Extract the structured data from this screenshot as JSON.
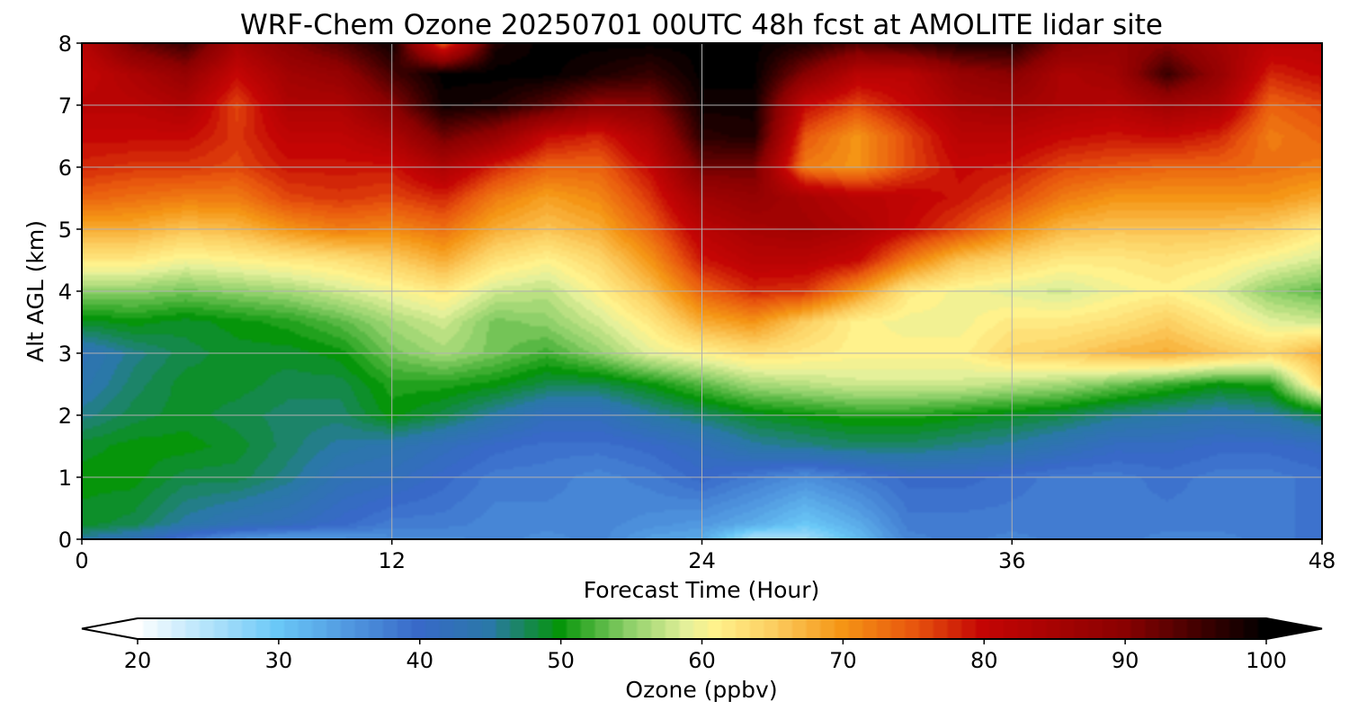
{
  "chart_data": {
    "type": "heatmap",
    "title": "WRF-Chem Ozone  20250701 00UTC 48h fcst at AMOLITE lidar site",
    "xlabel": "Forecast Time (Hour)",
    "ylabel": "Alt AGL (km)",
    "xlim": [
      0,
      48
    ],
    "ylim": [
      0,
      8
    ],
    "xticks": [
      "0",
      "12",
      "24",
      "36",
      "48"
    ],
    "yticks": [
      "0",
      "1",
      "2",
      "3",
      "4",
      "5",
      "6",
      "7",
      "8"
    ],
    "grid": true,
    "x_hours": [
      0,
      2,
      4,
      6,
      8,
      10,
      12,
      14,
      16,
      18,
      20,
      22,
      24,
      26,
      28,
      30,
      32,
      34,
      36,
      38,
      40,
      42,
      44,
      46,
      48
    ],
    "y_km": [
      0,
      0.25,
      1,
      1.5,
      2,
      2.5,
      3,
      3.5,
      4,
      4.5,
      5,
      5.5,
      6,
      6.5,
      7,
      7.5,
      8
    ],
    "z_ppbv": [
      [
        45,
        43,
        38,
        35,
        34,
        35,
        36,
        36,
        37,
        36,
        37,
        34,
        33,
        25,
        26,
        31,
        37,
        38,
        37,
        38,
        38,
        37,
        37,
        38,
        39
      ],
      [
        49,
        48,
        45,
        43,
        42,
        40,
        38,
        38,
        37,
        37,
        37,
        36,
        35,
        33,
        30,
        33,
        38,
        38,
        38,
        38,
        38,
        38,
        38,
        38,
        39
      ],
      [
        50,
        50,
        48,
        48,
        46,
        43,
        42,
        40,
        38,
        38,
        37,
        38,
        40,
        38,
        36,
        38,
        40,
        40,
        39,
        38,
        38,
        39,
        38,
        38,
        39
      ],
      [
        49,
        50,
        50,
        49,
        47,
        45,
        44,
        42,
        40,
        39,
        39,
        40,
        42,
        45,
        46,
        47,
        47,
        46,
        45,
        43,
        41,
        41,
        40,
        40,
        41
      ],
      [
        46,
        48,
        49,
        48,
        47,
        47,
        50,
        48,
        45,
        42,
        42,
        45,
        47,
        49,
        50,
        51,
        51,
        50,
        49,
        48,
        46,
        45,
        44,
        45,
        48
      ],
      [
        44,
        47,
        49,
        49,
        48,
        48,
        51,
        51,
        50,
        48,
        48,
        50,
        53,
        56,
        57,
        58,
        58,
        58,
        57,
        56,
        54,
        52,
        50,
        51,
        64
      ],
      [
        43,
        46,
        48,
        49,
        49,
        50,
        54,
        56,
        54,
        52,
        55,
        59,
        61,
        63,
        62,
        61,
        61,
        61,
        64,
        65,
        67,
        68,
        66,
        64,
        68
      ],
      [
        49,
        50,
        49,
        50,
        51,
        53,
        56,
        58,
        54,
        55,
        58,
        62,
        68,
        70,
        65,
        61,
        60,
        60,
        62,
        62,
        63,
        65,
        62,
        59,
        58
      ],
      [
        55,
        55,
        54,
        55,
        56,
        58,
        60,
        62,
        58,
        57,
        61,
        66,
        74,
        78,
        77,
        70,
        62,
        60,
        59,
        58,
        60,
        61,
        59,
        55,
        53
      ],
      [
        62,
        62,
        60,
        61,
        62,
        63,
        65,
        68,
        63,
        61,
        64,
        70,
        79,
        82,
        82,
        80,
        72,
        66,
        64,
        62,
        62,
        63,
        62,
        60,
        58
      ],
      [
        68,
        68,
        66,
        67,
        70,
        72,
        71,
        73,
        68,
        66,
        68,
        74,
        82,
        85,
        86,
        84,
        80,
        76,
        71,
        67,
        66,
        66,
        66,
        65,
        62
      ],
      [
        74,
        73,
        72,
        72,
        76,
        77,
        76,
        78,
        72,
        69,
        71,
        77,
        86,
        88,
        85,
        82,
        81,
        79,
        76,
        72,
        70,
        70,
        70,
        70,
        68
      ],
      [
        78,
        77,
        77,
        76,
        79,
        79,
        79,
        84,
        78,
        74,
        74,
        80,
        92,
        92,
        72,
        70,
        76,
        80,
        79,
        76,
        75,
        74,
        74,
        73,
        72
      ],
      [
        80,
        80,
        80,
        77,
        81,
        81,
        84,
        92,
        88,
        80,
        78,
        84,
        97,
        98,
        75,
        70,
        76,
        82,
        82,
        80,
        79,
        80,
        78,
        72,
        74
      ],
      [
        82,
        82,
        84,
        76,
        84,
        84,
        90,
        99,
        98,
        94,
        89,
        90,
        99,
        99,
        80,
        76,
        80,
        85,
        86,
        84,
        83,
        86,
        84,
        74,
        76
      ],
      [
        80,
        84,
        88,
        80,
        86,
        88,
        95,
        100,
        100,
        100,
        98,
        96,
        100,
        100,
        90,
        82,
        82,
        88,
        90,
        84,
        86,
        96,
        88,
        78,
        80
      ],
      [
        82,
        92,
        96,
        85,
        90,
        94,
        99,
        74,
        98,
        100,
        100,
        100,
        100,
        100,
        98,
        94,
        96,
        98,
        98,
        90,
        88,
        90,
        86,
        82,
        82
      ]
    ],
    "colorbar": {
      "label": "Ozone  (ppbv)",
      "ticks": [
        "20",
        "30",
        "40",
        "50",
        "60",
        "70",
        "80",
        "90",
        "100"
      ],
      "range": [
        20,
        100
      ],
      "extend": "both",
      "orientation": "horizontal",
      "colors": {
        "20": "#ffffff",
        "30": "#6ac8f7",
        "40": "#3869c8",
        "45": "#2a78a8",
        "50": "#06950a",
        "55": "#8fd06a",
        "59": "#e4f09a",
        "61": "#fff28c",
        "65": "#fccf62",
        "70": "#f59515",
        "75": "#e8570e",
        "80": "#c40504",
        "90": "#8a0101",
        "100": "#000000"
      }
    }
  }
}
